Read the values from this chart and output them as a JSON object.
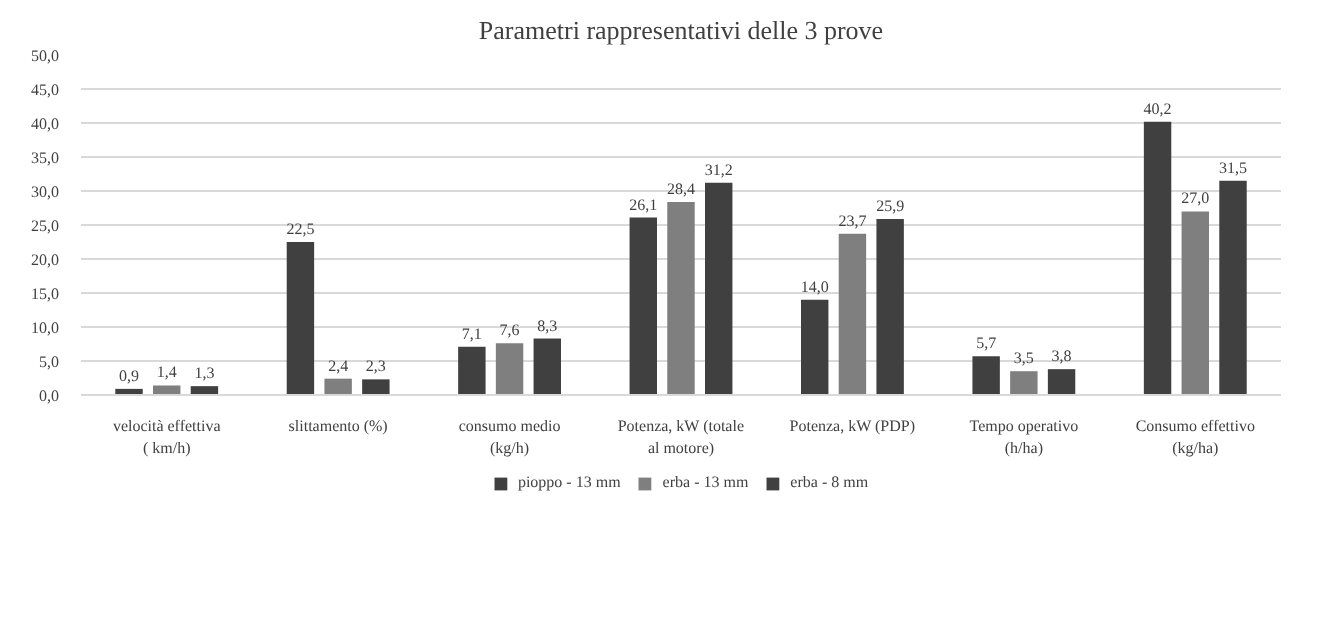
{
  "chart_data": {
    "type": "bar",
    "title": "Parametri rappresentativi delle 3 prove",
    "categories": [
      "velocità effettiva ( km/h)",
      "slittamento (%)",
      "consumo medio (kg/h)",
      "Potenza, kW (totale al motore)",
      "Potenza, kW (PDP)",
      "Tempo operativo (h/ha)",
      "Consumo effettivo (kg/ha)"
    ],
    "series": [
      {
        "name": "pioppo - 13 mm",
        "color": "#404040",
        "values": [
          0.9,
          22.5,
          7.1,
          26.1,
          14.0,
          5.7,
          40.2
        ],
        "value_labels": [
          "0,9",
          "22,5",
          "7,1",
          "26,1",
          "14,0",
          "5,7",
          "40,2"
        ]
      },
      {
        "name": "erba - 13 mm",
        "color": "#7f7f7f",
        "values": [
          1.4,
          2.4,
          7.6,
          28.4,
          23.7,
          3.5,
          27.0
        ],
        "value_labels": [
          "1,4",
          "2,4",
          "7,6",
          "28,4",
          "23,7",
          "3,5",
          "27,0"
        ]
      },
      {
        "name": "erba - 8 mm",
        "color": "#404040",
        "values": [
          1.3,
          2.3,
          8.3,
          31.2,
          25.9,
          3.8,
          31.5
        ],
        "value_labels": [
          "1,3",
          "2,3",
          "8,3",
          "31,2",
          "25,9",
          "3,8",
          "31,5"
        ]
      }
    ],
    "ylim": [
      0,
      50
    ],
    "yticks": [
      {
        "value": 0,
        "label": "0,0"
      },
      {
        "value": 5,
        "label": "5,0"
      },
      {
        "value": 10,
        "label": "10,0"
      },
      {
        "value": 15,
        "label": "15,0"
      },
      {
        "value": 20,
        "label": "20,0"
      },
      {
        "value": 25,
        "label": "25,0"
      },
      {
        "value": 30,
        "label": "30,0"
      },
      {
        "value": 35,
        "label": "35,0"
      },
      {
        "value": 40,
        "label": "40,0"
      },
      {
        "value": 45,
        "label": "45,0"
      },
      {
        "value": 50,
        "label": "50,0"
      }
    ],
    "grid": "y",
    "legend": "bottom"
  }
}
